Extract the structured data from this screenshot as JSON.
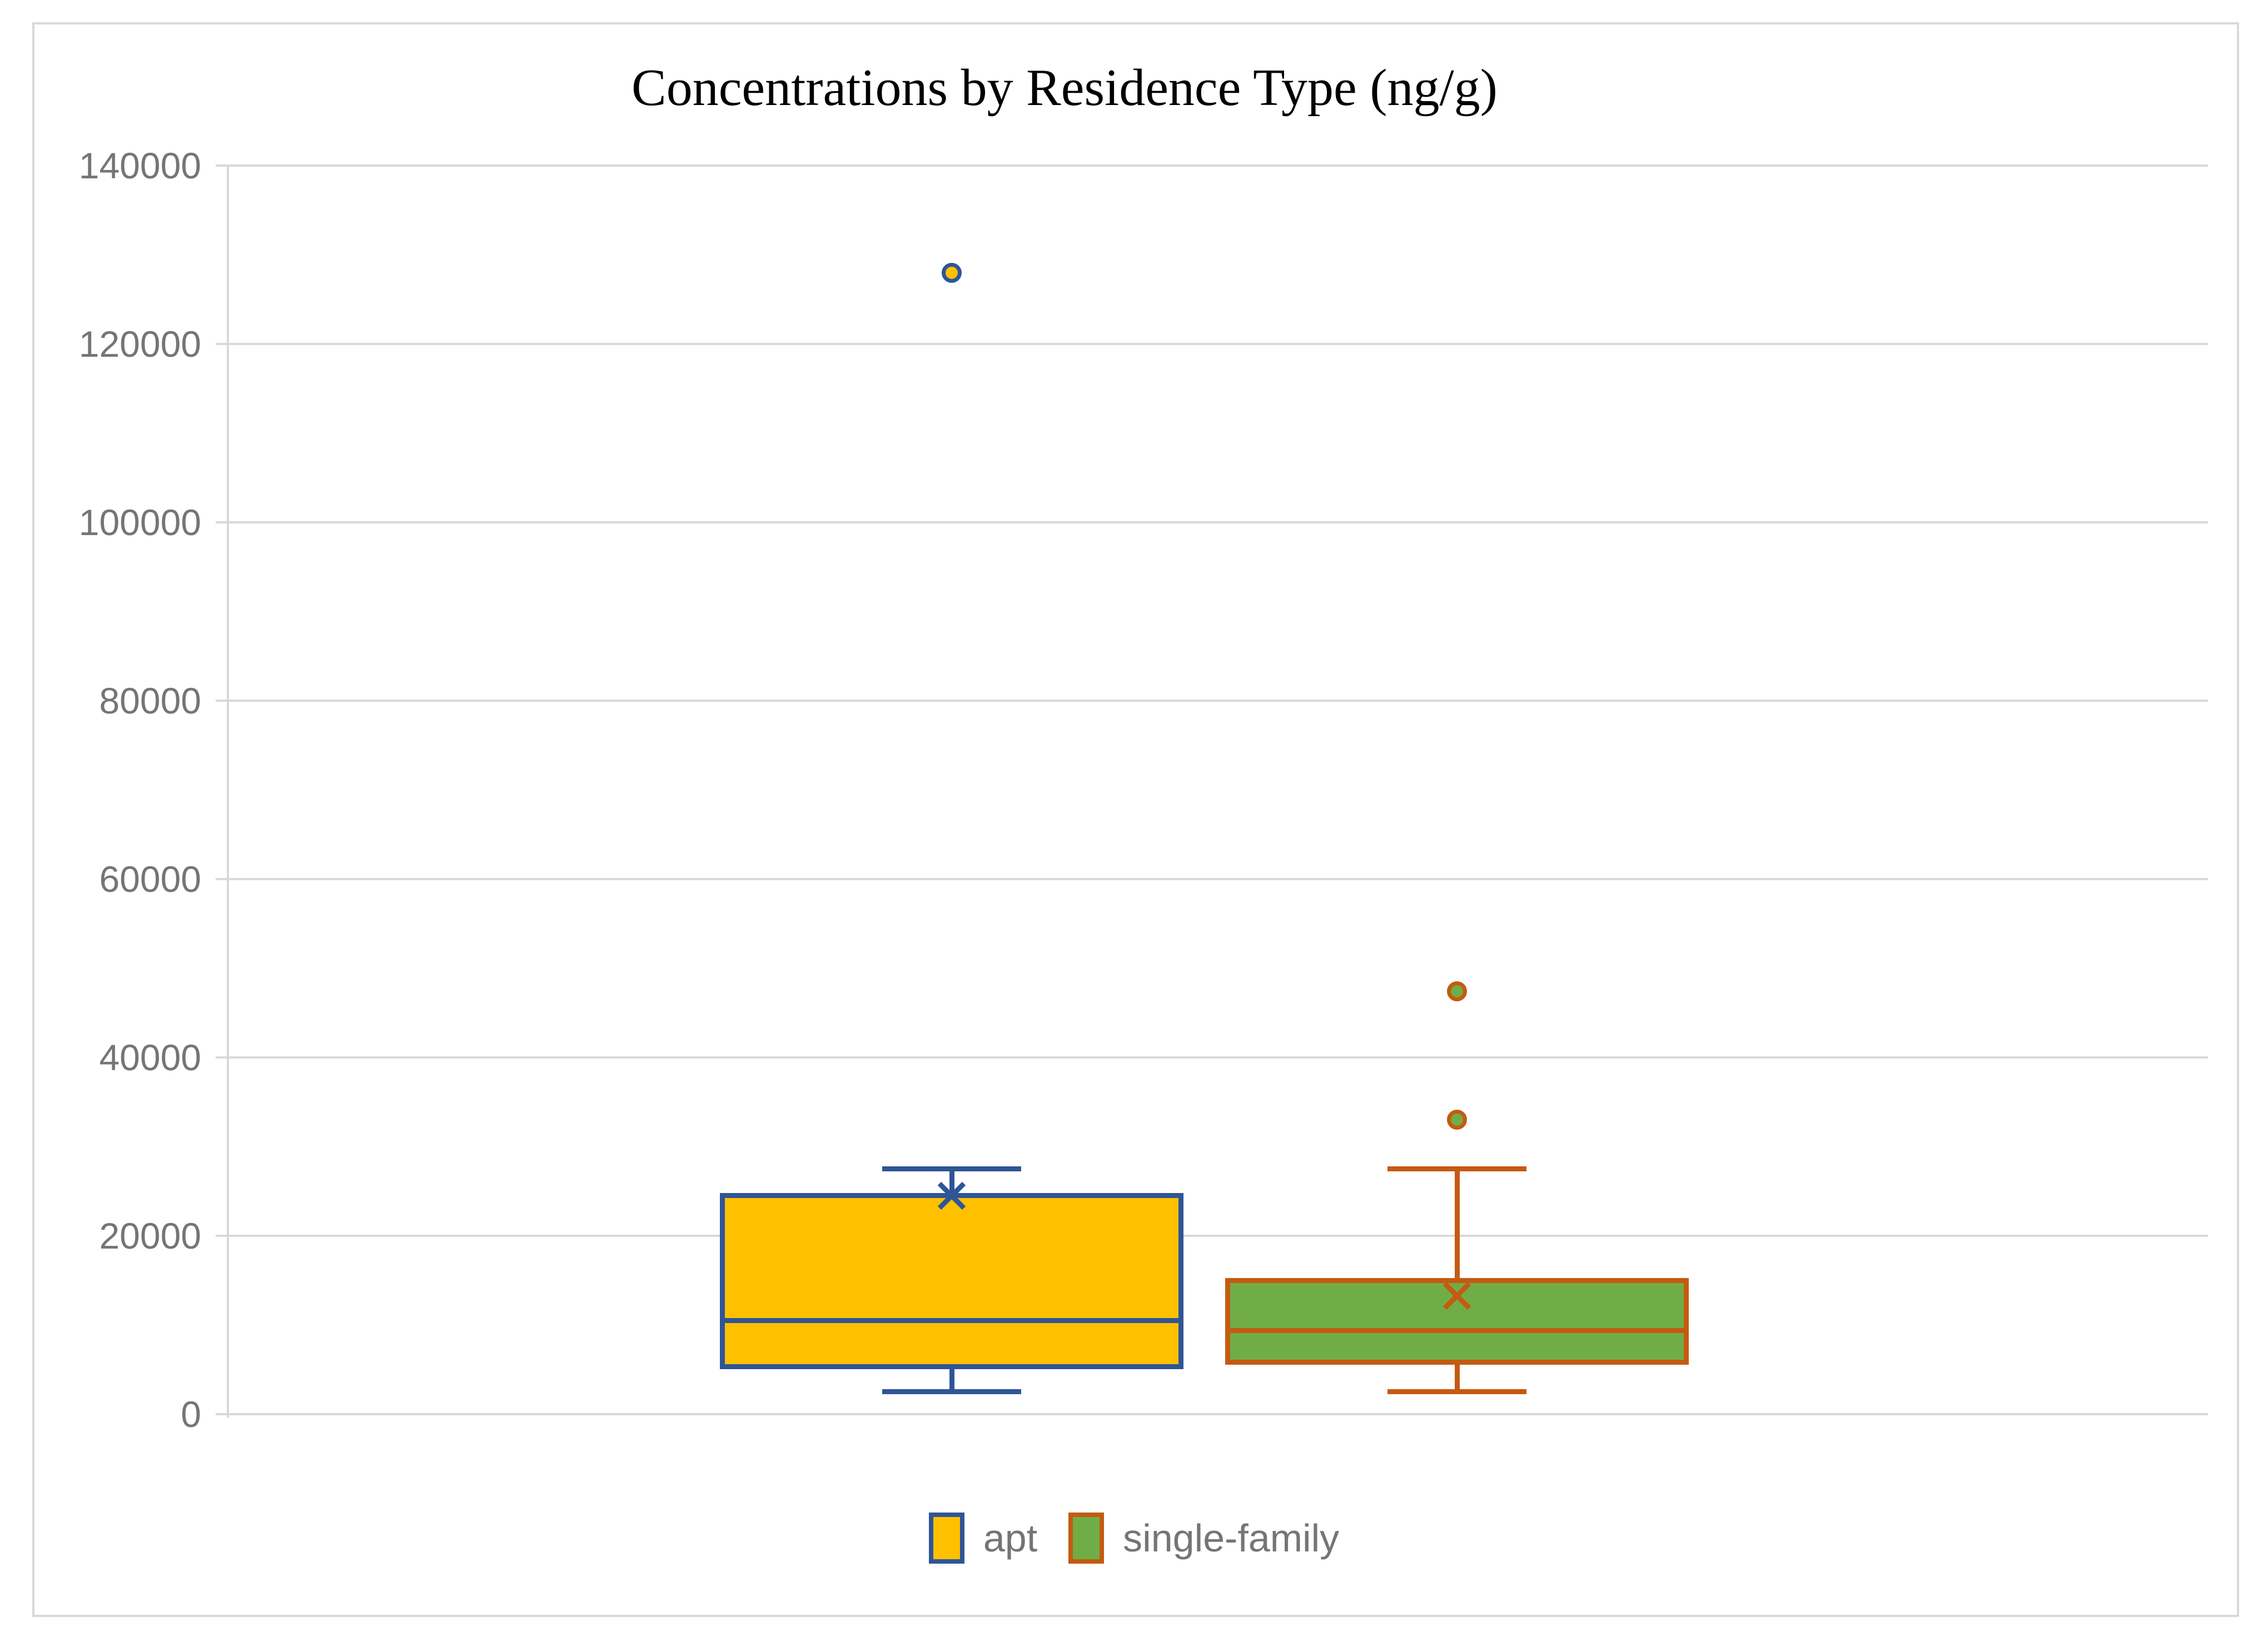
{
  "title": "Concentrations by Residence Type (ng/g)",
  "colors": {
    "background": "#FFFFFF",
    "frame_border": "#D9D9D9",
    "gridline": "#D9D9D9",
    "axis_line": "#D9D9D9",
    "tick_label_text": "#757575",
    "legend_text": "#757575",
    "title_text": "#000000",
    "apt_fill": "#FFC000",
    "apt_stroke": "#2F5597",
    "single_family_fill": "#70AD47",
    "single_family_stroke": "#C55A11"
  },
  "y_axis": {
    "tick_labels": [
      "0",
      "20000",
      "40000",
      "60000",
      "80000",
      "100000",
      "120000",
      "140000"
    ]
  },
  "legend": {
    "items": [
      {
        "label": "apt"
      },
      {
        "label": "single-family"
      }
    ]
  },
  "chart_data": {
    "type": "box",
    "title": "Concentrations by Residence Type (ng/g)",
    "categories": [
      "apt",
      "single-family"
    ],
    "ylim": [
      0,
      140000
    ],
    "ytick_step": 20000,
    "grid": true,
    "legend_position": "bottom",
    "series": [
      {
        "name": "apt",
        "whisker_low": 2500,
        "q1": 5300,
        "median": 10500,
        "q3": 24500,
        "whisker_high": 27500,
        "mean": 24500,
        "outliers": [
          128000
        ],
        "fill": "#FFC000",
        "stroke": "#2F5597"
      },
      {
        "name": "single-family",
        "whisker_low": 2500,
        "q1": 5800,
        "median": 9400,
        "q3": 15000,
        "whisker_high": 27500,
        "mean": 13300,
        "outliers": [
          33000,
          47400
        ],
        "fill": "#70AD47",
        "stroke": "#C55A11"
      }
    ]
  }
}
